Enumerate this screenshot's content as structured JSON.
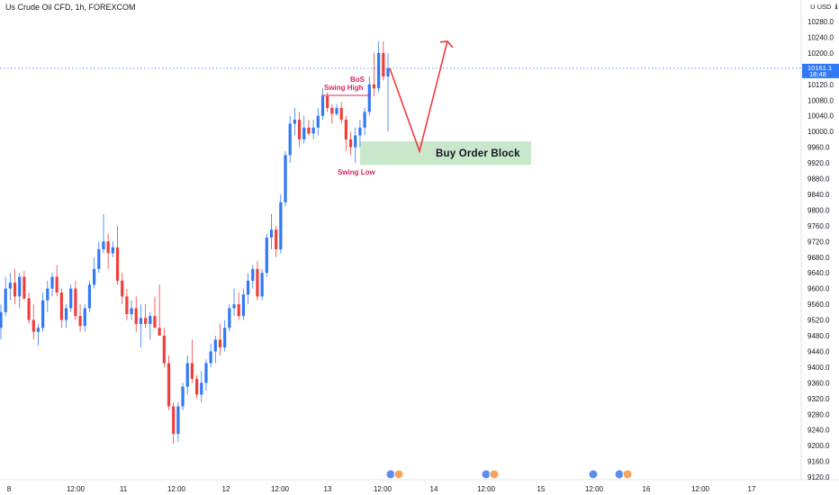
{
  "header": {
    "symbol_title": "Us Crude Oil CFD, 1h, FOREXCOM"
  },
  "price_axis": {
    "unit": " U USD  ℹ",
    "ticks": [
      "10280.0",
      "10240.0",
      "10200.0",
      "10120.0",
      "10080.0",
      "10040.0",
      "10000.0",
      "9960.0",
      "9920.0",
      "9880.0",
      "9840.0",
      "9800.0",
      "9760.0",
      "9720.0",
      "9680.0",
      "9640.0",
      "9600.0",
      "9560.0",
      "9520.0",
      "9480.0",
      "9440.0",
      "9400.0",
      "9360.0",
      "9320.0",
      "9280.0",
      "9240.0",
      "9200.0",
      "9160.0",
      "9120.0"
    ],
    "last_price": "10161.1",
    "countdown": "18:48"
  },
  "time_axis": {
    "ticks": [
      "8",
      "12:00",
      "11",
      "12:00",
      "12",
      "12:00",
      "13",
      "12:00",
      "14",
      "12:00",
      "15",
      "12:00",
      "16",
      "12:00",
      "17"
    ]
  },
  "annotations": {
    "bos": "BoS",
    "swing_high": "Swing High",
    "swing_low": "Swing Low",
    "order_block": "Buy Order Block"
  },
  "colors": {
    "up": "#3179f5",
    "down": "#f0403c",
    "annotation": "#e0245e",
    "zone": "#b7dfb9",
    "arrow": "#ef3b3b",
    "last_price_tag": "#3179f5"
  },
  "chart_data": {
    "type": "candlestick",
    "interval": "1h",
    "y_axis": {
      "min": 9100,
      "max": 10320
    },
    "candles": [
      {
        "o": 9500,
        "h": 9560,
        "l": 9470,
        "c": 9540
      },
      {
        "o": 9540,
        "h": 9630,
        "l": 9530,
        "c": 9600
      },
      {
        "o": 9600,
        "h": 9640,
        "l": 9570,
        "c": 9615
      },
      {
        "o": 9615,
        "h": 9650,
        "l": 9560,
        "c": 9580
      },
      {
        "o": 9580,
        "h": 9640,
        "l": 9550,
        "c": 9630
      },
      {
        "o": 9630,
        "h": 9645,
        "l": 9570,
        "c": 9575
      },
      {
        "o": 9575,
        "h": 9590,
        "l": 9510,
        "c": 9520
      },
      {
        "o": 9520,
        "h": 9560,
        "l": 9470,
        "c": 9490
      },
      {
        "o": 9490,
        "h": 9510,
        "l": 9455,
        "c": 9500
      },
      {
        "o": 9500,
        "h": 9590,
        "l": 9490,
        "c": 9570
      },
      {
        "o": 9570,
        "h": 9620,
        "l": 9540,
        "c": 9600
      },
      {
        "o": 9600,
        "h": 9640,
        "l": 9580,
        "c": 9630
      },
      {
        "o": 9630,
        "h": 9660,
        "l": 9580,
        "c": 9590
      },
      {
        "o": 9590,
        "h": 9600,
        "l": 9500,
        "c": 9520
      },
      {
        "o": 9520,
        "h": 9560,
        "l": 9500,
        "c": 9550
      },
      {
        "o": 9550,
        "h": 9610,
        "l": 9540,
        "c": 9600
      },
      {
        "o": 9600,
        "h": 9620,
        "l": 9520,
        "c": 9530
      },
      {
        "o": 9530,
        "h": 9560,
        "l": 9490,
        "c": 9505
      },
      {
        "o": 9505,
        "h": 9560,
        "l": 9490,
        "c": 9550
      },
      {
        "o": 9550,
        "h": 9620,
        "l": 9540,
        "c": 9610
      },
      {
        "o": 9610,
        "h": 9680,
        "l": 9600,
        "c": 9650
      },
      {
        "o": 9650,
        "h": 9720,
        "l": 9640,
        "c": 9700
      },
      {
        "o": 9700,
        "h": 9790,
        "l": 9690,
        "c": 9720
      },
      {
        "o": 9720,
        "h": 9740,
        "l": 9650,
        "c": 9690
      },
      {
        "o": 9690,
        "h": 9720,
        "l": 9680,
        "c": 9705
      },
      {
        "o": 9705,
        "h": 9760,
        "l": 9610,
        "c": 9620
      },
      {
        "o": 9620,
        "h": 9640,
        "l": 9560,
        "c": 9580
      },
      {
        "o": 9580,
        "h": 9600,
        "l": 9520,
        "c": 9535
      },
      {
        "o": 9535,
        "h": 9570,
        "l": 9520,
        "c": 9550
      },
      {
        "o": 9550,
        "h": 9580,
        "l": 9490,
        "c": 9510
      },
      {
        "o": 9510,
        "h": 9560,
        "l": 9450,
        "c": 9525
      },
      {
        "o": 9525,
        "h": 9560,
        "l": 9500,
        "c": 9510
      },
      {
        "o": 9510,
        "h": 9540,
        "l": 9470,
        "c": 9530
      },
      {
        "o": 9530,
        "h": 9580,
        "l": 9510,
        "c": 9500
      },
      {
        "o": 9500,
        "h": 9610,
        "l": 9490,
        "c": 9480
      },
      {
        "o": 9480,
        "h": 9500,
        "l": 9400,
        "c": 9410
      },
      {
        "o": 9410,
        "h": 9430,
        "l": 9290,
        "c": 9300
      },
      {
        "o": 9300,
        "h": 9310,
        "l": 9205,
        "c": 9230
      },
      {
        "o": 9230,
        "h": 9310,
        "l": 9210,
        "c": 9300
      },
      {
        "o": 9300,
        "h": 9360,
        "l": 9290,
        "c": 9350
      },
      {
        "o": 9350,
        "h": 9430,
        "l": 9330,
        "c": 9410
      },
      {
        "o": 9410,
        "h": 9470,
        "l": 9360,
        "c": 9370
      },
      {
        "o": 9370,
        "h": 9380,
        "l": 9320,
        "c": 9330
      },
      {
        "o": 9330,
        "h": 9390,
        "l": 9310,
        "c": 9360
      },
      {
        "o": 9360,
        "h": 9420,
        "l": 9340,
        "c": 9410
      },
      {
        "o": 9410,
        "h": 9460,
        "l": 9400,
        "c": 9440
      },
      {
        "o": 9440,
        "h": 9480,
        "l": 9410,
        "c": 9470
      },
      {
        "o": 9470,
        "h": 9510,
        "l": 9430,
        "c": 9450
      },
      {
        "o": 9450,
        "h": 9520,
        "l": 9440,
        "c": 9500
      },
      {
        "o": 9500,
        "h": 9560,
        "l": 9490,
        "c": 9550
      },
      {
        "o": 9550,
        "h": 9600,
        "l": 9530,
        "c": 9560
      },
      {
        "o": 9560,
        "h": 9590,
        "l": 9520,
        "c": 9530
      },
      {
        "o": 9530,
        "h": 9600,
        "l": 9520,
        "c": 9585
      },
      {
        "o": 9585,
        "h": 9640,
        "l": 9560,
        "c": 9620
      },
      {
        "o": 9620,
        "h": 9660,
        "l": 9600,
        "c": 9650
      },
      {
        "o": 9650,
        "h": 9670,
        "l": 9570,
        "c": 9580
      },
      {
        "o": 9580,
        "h": 9650,
        "l": 9570,
        "c": 9640
      },
      {
        "o": 9640,
        "h": 9740,
        "l": 9630,
        "c": 9730
      },
      {
        "o": 9730,
        "h": 9790,
        "l": 9700,
        "c": 9750
      },
      {
        "o": 9750,
        "h": 9760,
        "l": 9680,
        "c": 9700
      },
      {
        "o": 9700,
        "h": 9840,
        "l": 9690,
        "c": 9820
      },
      {
        "o": 9820,
        "h": 9950,
        "l": 9810,
        "c": 9940
      },
      {
        "o": 9940,
        "h": 10040,
        "l": 9920,
        "c": 10020
      },
      {
        "o": 10020,
        "h": 10060,
        "l": 9990,
        "c": 10030
      },
      {
        "o": 10030,
        "h": 10050,
        "l": 9960,
        "c": 9980
      },
      {
        "o": 9980,
        "h": 10040,
        "l": 9970,
        "c": 10010
      },
      {
        "o": 10010,
        "h": 10030,
        "l": 9990,
        "c": 9995
      },
      {
        "o": 9995,
        "h": 10030,
        "l": 9980,
        "c": 10010
      },
      {
        "o": 10010,
        "h": 10060,
        "l": 9990,
        "c": 10040
      },
      {
        "o": 10040,
        "h": 10110,
        "l": 10030,
        "c": 10090
      },
      {
        "o": 10090,
        "h": 10100,
        "l": 10050,
        "c": 10060
      },
      {
        "o": 10060,
        "h": 10070,
        "l": 10020,
        "c": 10045
      },
      {
        "o": 10045,
        "h": 10070,
        "l": 10040,
        "c": 10060
      },
      {
        "o": 10060,
        "h": 10075,
        "l": 10020,
        "c": 10030
      },
      {
        "o": 10030,
        "h": 10040,
        "l": 9950,
        "c": 9980
      },
      {
        "o": 9980,
        "h": 10000,
        "l": 9940,
        "c": 9960
      },
      {
        "o": 9960,
        "h": 10010,
        "l": 9920,
        "c": 9990
      },
      {
        "o": 9990,
        "h": 10030,
        "l": 9960,
        "c": 10010
      },
      {
        "o": 10010,
        "h": 10060,
        "l": 9990,
        "c": 10050
      },
      {
        "o": 10050,
        "h": 10140,
        "l": 10040,
        "c": 10120
      },
      {
        "o": 10120,
        "h": 10200,
        "l": 10090,
        "c": 10110
      },
      {
        "o": 10110,
        "h": 10230,
        "l": 10100,
        "c": 10200
      },
      {
        "o": 10200,
        "h": 10230,
        "l": 10130,
        "c": 10140
      },
      {
        "o": 10140,
        "h": 10200,
        "l": 10000,
        "c": 10161
      }
    ],
    "zones": [
      {
        "label": "Buy Order Block",
        "from": 9915,
        "to": 9975
      }
    ],
    "swing_high_level": 10092,
    "swing_low_level": 9922,
    "last_price": 10161.1,
    "projection": [
      [
        10161,
        "start"
      ],
      [
        9950,
        "dip"
      ],
      [
        10230,
        "target"
      ]
    ]
  }
}
